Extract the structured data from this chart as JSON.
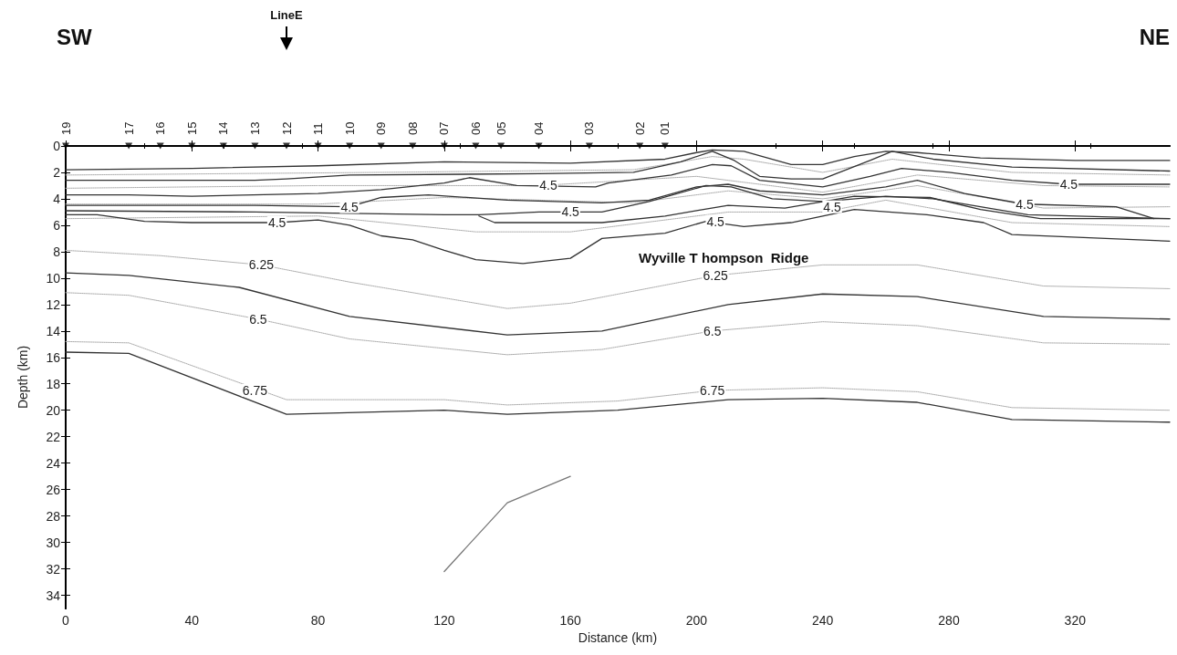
{
  "chart_data": {
    "type": "line",
    "xlabel": "Distance (km)",
    "ylabel": "Depth (km)",
    "xlim": [
      0,
      350
    ],
    "xticks": [
      0,
      40,
      80,
      120,
      160,
      200,
      240,
      280,
      320
    ],
    "ylim": [
      35,
      0
    ],
    "yticks": [
      0,
      2,
      4,
      6,
      8,
      10,
      12,
      14,
      16,
      18,
      20,
      22,
      24,
      26,
      28,
      30,
      32,
      34
    ],
    "marker": "none",
    "grid": false,
    "series": [
      {
        "color": "#333333",
        "line_style": "solid",
        "x": [
          0,
          40,
          80,
          120,
          160,
          190,
          200,
          205,
          215,
          230,
          240,
          250,
          260,
          270,
          290,
          320,
          350
        ],
        "values": [
          1.8,
          1.7,
          1.5,
          1.2,
          1.3,
          1.0,
          0.5,
          0.3,
          0.4,
          1.4,
          1.4,
          0.8,
          0.4,
          0.5,
          0.9,
          1.1,
          1.1
        ]
      },
      {
        "color": "#aaaaaa",
        "line_style": "dotted",
        "x": [
          0,
          100,
          180,
          205,
          215,
          240,
          262,
          300,
          350
        ],
        "values": [
          2.2,
          2.0,
          1.8,
          0.8,
          1.0,
          2.0,
          1.0,
          2.0,
          2.2
        ]
      },
      {
        "color": "#333333",
        "line_style": "solid",
        "x": [
          0,
          60,
          70,
          90,
          150,
          180,
          195,
          205,
          212,
          220,
          230,
          240,
          255,
          262,
          275,
          300,
          350
        ],
        "values": [
          2.6,
          2.6,
          2.5,
          2.2,
          2.1,
          2.0,
          1.2,
          0.4,
          1.1,
          2.3,
          2.5,
          2.5,
          1.1,
          0.4,
          1.0,
          1.6,
          1.9
        ]
      },
      {
        "color": "#aaaaaa",
        "line_style": "dotted",
        "x": [
          0,
          80,
          150,
          200,
          240,
          270,
          310,
          350
        ],
        "values": [
          3.2,
          3.0,
          3.0,
          2.3,
          3.5,
          2.2,
          3.0,
          3.1
        ]
      },
      {
        "color": "#333333",
        "line_style": "solid",
        "x": [
          0,
          20,
          40,
          80,
          100,
          120,
          128,
          143,
          168,
          172,
          192,
          205,
          211,
          220,
          240,
          255,
          265,
          280,
          300,
          318,
          350
        ],
        "values": [
          3.7,
          3.7,
          3.8,
          3.6,
          3.3,
          2.8,
          2.4,
          3.0,
          3.1,
          2.8,
          2.2,
          1.4,
          1.5,
          2.6,
          3.1,
          2.3,
          1.7,
          2.0,
          2.6,
          2.9,
          2.9
        ]
      },
      {
        "color": "#aaaaaa",
        "line_style": "dotted",
        "x": [
          0,
          80,
          120,
          180,
          210,
          240,
          270,
          310,
          350
        ],
        "values": [
          4.4,
          4.4,
          3.9,
          4.3,
          3.4,
          4.0,
          3.0,
          4.7,
          4.6
        ]
      },
      {
        "color": "#333333",
        "line_style": "solid",
        "x": [
          0,
          60,
          90,
          100,
          115,
          140,
          170,
          185,
          200,
          210,
          220,
          240,
          260,
          270,
          285,
          304,
          333,
          345
        ],
        "values": [
          4.5,
          4.5,
          4.6,
          3.9,
          3.7,
          4.1,
          4.3,
          4.1,
          3.1,
          2.9,
          3.4,
          3.7,
          3.1,
          2.6,
          3.6,
          4.4,
          4.6,
          5.5
        ]
      },
      {
        "color": "#333333",
        "line_style": "solid",
        "x": [
          0,
          60,
          120,
          131,
          150,
          160,
          170,
          185,
          203,
          211,
          224,
          240,
          260,
          275,
          290,
          305,
          350
        ],
        "values": [
          4.9,
          5.0,
          5.2,
          5.2,
          5.0,
          5.0,
          5.0,
          4.2,
          3.0,
          3.1,
          4.0,
          4.2,
          3.8,
          4.0,
          4.6,
          5.2,
          5.5
        ]
      },
      {
        "color": "#333333",
        "line_style": "solid",
        "x": [
          131,
          136,
          170,
          190,
          200,
          210,
          228,
          250,
          274,
          290,
          309,
          350
        ],
        "values": [
          5.3,
          5.8,
          5.8,
          5.3,
          4.9,
          4.5,
          4.7,
          3.8,
          3.9,
          4.8,
          5.5,
          5.5
        ]
      },
      {
        "color": "#aaaaaa",
        "line_style": "dotted",
        "x": [
          0,
          80,
          130,
          160,
          210,
          240,
          260,
          300,
          350
        ],
        "values": [
          5.5,
          5.3,
          6.5,
          6.5,
          5.0,
          5.0,
          4.1,
          5.8,
          6.1
        ]
      },
      {
        "color": "#333333",
        "line_style": "solid",
        "x": [
          0,
          10,
          25,
          40,
          67,
          80,
          90,
          100,
          110,
          120,
          130,
          145,
          160,
          170,
          190,
          203,
          215,
          230,
          250,
          273,
          291,
          300,
          350
        ],
        "values": [
          5.2,
          5.2,
          5.7,
          5.8,
          5.8,
          5.6,
          6.0,
          6.8,
          7.1,
          7.9,
          8.6,
          8.9,
          8.5,
          7.0,
          6.6,
          5.7,
          6.1,
          5.8,
          4.8,
          5.2,
          5.8,
          6.7,
          7.2
        ]
      },
      {
        "color": "#aaaaaa",
        "line_style": "dotted",
        "x": [
          0,
          30,
          62,
          90,
          140,
          160,
          206,
          240,
          270,
          310,
          350
        ],
        "values": [
          7.9,
          8.3,
          9.0,
          10.3,
          12.3,
          11.9,
          9.8,
          9.0,
          9.0,
          10.6,
          10.8
        ]
      },
      {
        "color": "#333333",
        "line_style": "solid",
        "x": [
          0,
          20,
          55,
          90,
          140,
          170,
          210,
          240,
          270,
          310,
          350
        ],
        "values": [
          9.6,
          9.8,
          10.7,
          12.9,
          14.3,
          14.0,
          12.0,
          11.2,
          11.4,
          12.9,
          13.1
        ]
      },
      {
        "color": "#aaaaaa",
        "line_style": "dotted",
        "x": [
          0,
          20,
          61,
          90,
          140,
          170,
          205,
          240,
          270,
          310,
          350
        ],
        "values": [
          11.1,
          11.3,
          13.1,
          14.6,
          15.8,
          15.4,
          14.0,
          13.3,
          13.6,
          14.9,
          15.0
        ]
      },
      {
        "color": "#aaaaaa",
        "line_style": "dotted",
        "x": [
          0,
          20,
          70,
          120,
          140,
          175,
          205,
          240,
          270,
          300,
          350
        ],
        "values": [
          14.8,
          14.9,
          19.2,
          19.2,
          19.6,
          19.3,
          18.5,
          18.3,
          18.6,
          19.8,
          20.0
        ]
      },
      {
        "color": "#333333",
        "line_style": "solid",
        "x": [
          0,
          20,
          70,
          120,
          140,
          175,
          210,
          240,
          270,
          300,
          350
        ],
        "values": [
          15.6,
          15.7,
          20.3,
          20.0,
          20.3,
          20.0,
          19.2,
          19.1,
          19.4,
          20.7,
          20.9
        ]
      },
      {
        "color": "#777777",
        "line_style": "solid",
        "x": [
          120,
          140,
          160
        ],
        "values": [
          32.2,
          27.0,
          25.0
        ]
      },
      {
        "type": "scatter",
        "marker": "triangle",
        "color": "#000000",
        "x": [
          0,
          20,
          30,
          40,
          50,
          60,
          70,
          80,
          90,
          100,
          110,
          120,
          130,
          138,
          150,
          166,
          182,
          190
        ],
        "values": [
          0,
          0,
          0,
          0,
          0,
          0,
          0,
          0,
          0,
          0,
          0,
          0,
          0,
          0,
          0,
          0,
          0,
          0
        ]
      }
    ],
    "annotations": [
      "SW",
      "NE",
      "Wyville T hompson  Ridge",
      {
        "text": "LineE",
        "x": 70
      },
      {
        "text": "19",
        "x": 0,
        "y": 0
      },
      {
        "text": "17",
        "x": 20,
        "y": 0
      },
      {
        "text": "16",
        "x": 30,
        "y": 0
      },
      {
        "text": "15",
        "x": 40,
        "y": 0
      },
      {
        "text": "14",
        "x": 50,
        "y": 0
      },
      {
        "text": "13",
        "x": 60,
        "y": 0
      },
      {
        "text": "12",
        "x": 70,
        "y": 0
      },
      {
        "text": "11",
        "x": 80,
        "y": 0
      },
      {
        "text": "10",
        "x": 90,
        "y": 0
      },
      {
        "text": "09",
        "x": 100,
        "y": 0
      },
      {
        "text": "08",
        "x": 110,
        "y": 0
      },
      {
        "text": "07",
        "x": 120,
        "y": 0
      },
      {
        "text": "06",
        "x": 130,
        "y": 0
      },
      {
        "text": "05",
        "x": 138,
        "y": 0
      },
      {
        "text": "04",
        "x": 150,
        "y": 0
      },
      {
        "text": "03",
        "x": 166,
        "y": 0
      },
      {
        "text": "02",
        "x": 182,
        "y": 0
      },
      {
        "text": "01",
        "x": 190,
        "y": 0
      },
      {
        "text": "4.5",
        "x": 67,
        "y": 5.8
      },
      {
        "text": "4.5",
        "x": 90,
        "y": 4.6
      },
      {
        "text": "4.5",
        "x": 153,
        "y": 3.0
      },
      {
        "text": "4.5",
        "x": 160,
        "y": 5.0
      },
      {
        "text": "4.5",
        "x": 206,
        "y": 5.7
      },
      {
        "text": "4.5",
        "x": 243,
        "y": 4.6
      },
      {
        "text": "4.5",
        "x": 304,
        "y": 4.4
      },
      {
        "text": "4.5",
        "x": 318,
        "y": 2.9
      },
      {
        "text": "6.25",
        "x": 62,
        "y": 9.0
      },
      {
        "text": "6.25",
        "x": 206,
        "y": 9.8
      },
      {
        "text": "6.5",
        "x": 61,
        "y": 13.1
      },
      {
        "text": "6.5",
        "x": 205,
        "y": 14.0
      },
      {
        "text": "6.75",
        "x": 60,
        "y": 18.5
      },
      {
        "text": "6.75",
        "x": 205,
        "y": 18.5
      }
    ]
  }
}
